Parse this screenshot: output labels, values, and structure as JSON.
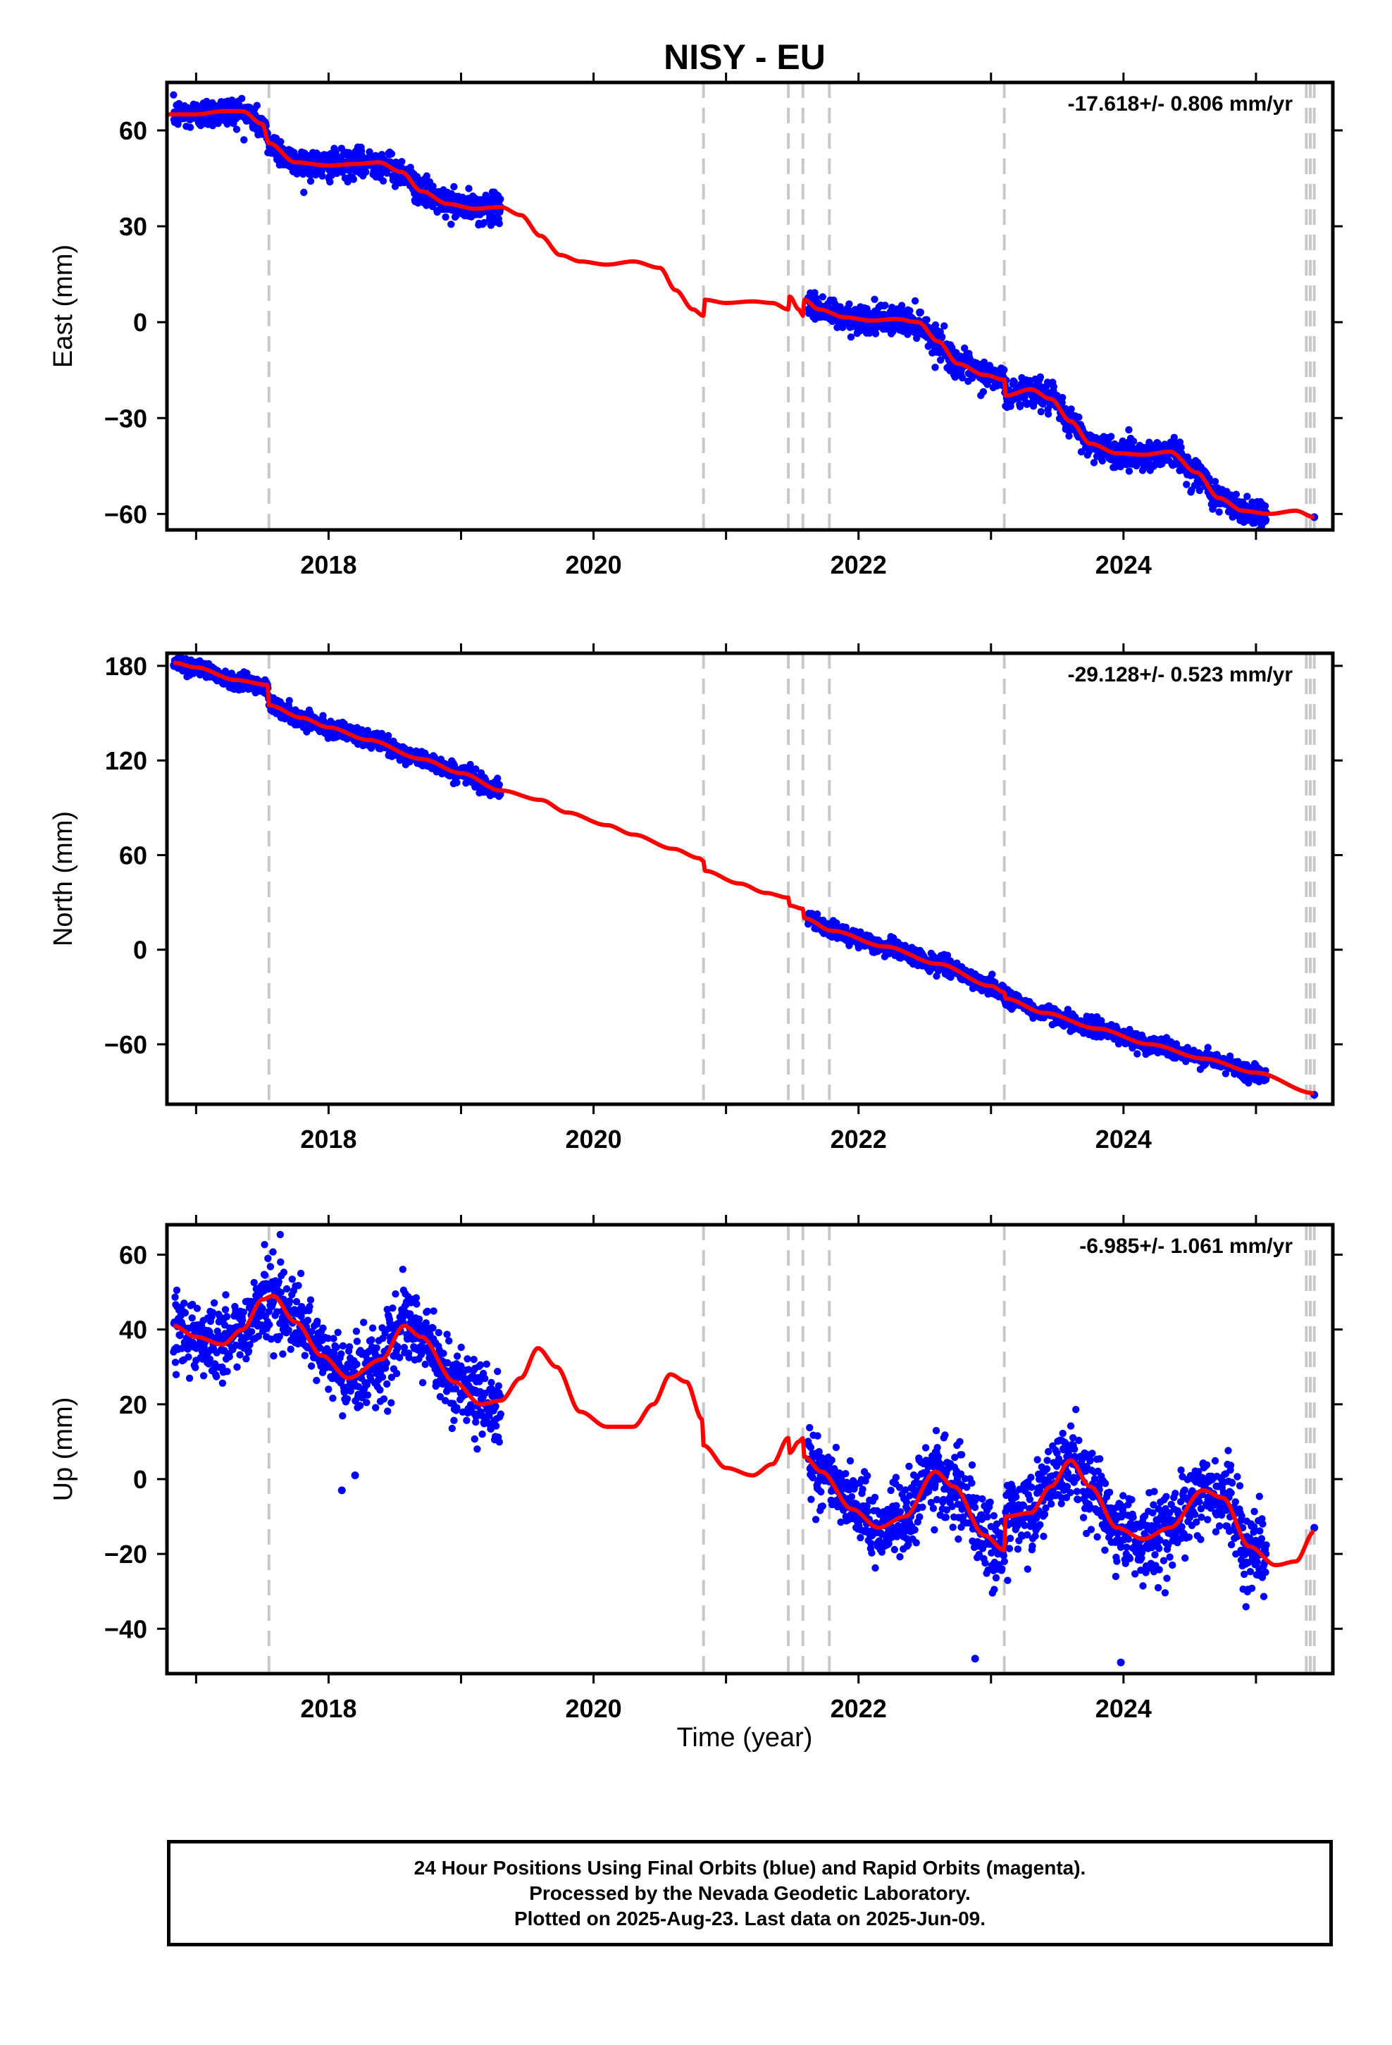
{
  "chart_data": {
    "type": "scatter",
    "title": "NISY - EU",
    "xlabel": "Time (year)",
    "x_range": [
      2016.78,
      2025.58
    ],
    "x_ticks": [
      2018,
      2020,
      2022,
      2024
    ],
    "x_tick_labels": [
      "2018",
      "2020",
      "2022",
      "2024"
    ],
    "equipment_change_lines": [
      2017.55,
      2020.83,
      2021.47,
      2021.58,
      2021.78,
      2023.1,
      2025.38,
      2025.41,
      2025.44
    ],
    "data_gap": [
      2019.3,
      2021.6
    ],
    "last_point_x": 2025.44,
    "panels": [
      {
        "name": "East",
        "ylabel": "East (mm)",
        "ylim": [
          -65,
          75
        ],
        "yticks": [
          60,
          30,
          0,
          -30,
          -60
        ],
        "ytick_labels": [
          "60",
          "30",
          "0",
          "−30",
          "−60"
        ],
        "rate_label": "-17.618+/- 0.806 mm/yr",
        "model_knots": [
          [
            2016.78,
            65
          ],
          [
            2017.0,
            65
          ],
          [
            2017.2,
            66
          ],
          [
            2017.35,
            66
          ],
          [
            2017.5,
            62
          ],
          [
            2017.55,
            56
          ],
          [
            2017.75,
            50
          ],
          [
            2018.0,
            49
          ],
          [
            2018.2,
            49.5
          ],
          [
            2018.38,
            50
          ],
          [
            2018.55,
            47
          ],
          [
            2018.7,
            41
          ],
          [
            2018.9,
            37
          ],
          [
            2019.1,
            35.5
          ],
          [
            2019.3,
            36
          ],
          [
            2019.45,
            33.5
          ],
          [
            2019.6,
            27
          ],
          [
            2019.75,
            21
          ],
          [
            2019.9,
            19
          ],
          [
            2020.1,
            18
          ],
          [
            2020.3,
            19
          ],
          [
            2020.5,
            17
          ],
          [
            2020.62,
            10
          ],
          [
            2020.75,
            4
          ],
          [
            2020.83,
            2
          ],
          [
            2020.84,
            7
          ],
          [
            2021.0,
            6
          ],
          [
            2021.2,
            6.5
          ],
          [
            2021.35,
            6
          ],
          [
            2021.47,
            4
          ],
          [
            2021.48,
            8
          ],
          [
            2021.55,
            4
          ],
          [
            2021.58,
            2
          ],
          [
            2021.59,
            7
          ],
          [
            2021.7,
            4
          ],
          [
            2021.9,
            1.5
          ],
          [
            2022.1,
            0.5
          ],
          [
            2022.28,
            1
          ],
          [
            2022.45,
            0
          ],
          [
            2022.6,
            -6
          ],
          [
            2022.75,
            -13
          ],
          [
            2022.95,
            -16.5
          ],
          [
            2023.1,
            -18
          ],
          [
            2023.11,
            -23
          ],
          [
            2023.3,
            -21
          ],
          [
            2023.45,
            -24
          ],
          [
            2023.6,
            -31
          ],
          [
            2023.75,
            -38
          ],
          [
            2023.95,
            -41
          ],
          [
            2024.15,
            -41.5
          ],
          [
            2024.35,
            -40.5
          ],
          [
            2024.55,
            -47
          ],
          [
            2024.72,
            -55
          ],
          [
            2024.9,
            -59
          ],
          [
            2025.1,
            -60
          ],
          [
            2025.3,
            -59
          ],
          [
            2025.44,
            -61
          ]
        ],
        "scatter_segments": [
          [
            2016.83,
            2019.3
          ],
          [
            2021.62,
            2025.08
          ]
        ],
        "noise": 2.2,
        "single_points": [
          [
            2025.44,
            -61
          ]
        ]
      },
      {
        "name": "North",
        "ylabel": "North (mm)",
        "ylim": [
          -98,
          188
        ],
        "yticks": [
          180,
          120,
          60,
          0,
          -60
        ],
        "ytick_labels": [
          "180",
          "120",
          "60",
          "0",
          "−60"
        ],
        "rate_label": "-29.128+/- 0.523 mm/yr",
        "model_knots": [
          [
            2016.83,
            182
          ],
          [
            2017.0,
            179
          ],
          [
            2017.3,
            171
          ],
          [
            2017.54,
            168
          ],
          [
            2017.55,
            155
          ],
          [
            2017.8,
            147
          ],
          [
            2018.0,
            141
          ],
          [
            2018.3,
            133
          ],
          [
            2018.7,
            121
          ],
          [
            2019.0,
            112
          ],
          [
            2019.3,
            101
          ],
          [
            2019.6,
            95
          ],
          [
            2019.8,
            87
          ],
          [
            2020.1,
            79
          ],
          [
            2020.3,
            73
          ],
          [
            2020.6,
            64
          ],
          [
            2020.8,
            58
          ],
          [
            2020.83,
            56
          ],
          [
            2020.84,
            50
          ],
          [
            2021.1,
            42
          ],
          [
            2021.3,
            36
          ],
          [
            2021.47,
            33
          ],
          [
            2021.48,
            28
          ],
          [
            2021.58,
            26
          ],
          [
            2021.59,
            20
          ],
          [
            2021.8,
            12
          ],
          [
            2022.2,
            2
          ],
          [
            2022.6,
            -9
          ],
          [
            2023.0,
            -23
          ],
          [
            2023.1,
            -27
          ],
          [
            2023.11,
            -31
          ],
          [
            2023.4,
            -40
          ],
          [
            2023.8,
            -50
          ],
          [
            2024.2,
            -60
          ],
          [
            2024.6,
            -69
          ],
          [
            2025.0,
            -78
          ],
          [
            2025.44,
            -91
          ]
        ],
        "scatter_segments": [
          [
            2016.83,
            2019.3
          ],
          [
            2021.62,
            2025.08
          ]
        ],
        "noise": 2.6,
        "single_points": [
          [
            2025.44,
            -92
          ]
        ]
      },
      {
        "name": "Up",
        "ylabel": "Up (mm)",
        "ylim": [
          -52,
          68
        ],
        "yticks": [
          60,
          40,
          20,
          0,
          -20,
          -40
        ],
        "ytick_labels": [
          "60",
          "40",
          "20",
          "0",
          "−20",
          "−40"
        ],
        "rate_label": "-6.985+/- 1.061 mm/yr",
        "model_knots": [
          [
            2016.83,
            41
          ],
          [
            2017.0,
            38
          ],
          [
            2017.2,
            36
          ],
          [
            2017.35,
            40
          ],
          [
            2017.5,
            48
          ],
          [
            2017.58,
            49
          ],
          [
            2017.75,
            42
          ],
          [
            2017.95,
            33
          ],
          [
            2018.15,
            27
          ],
          [
            2018.4,
            32
          ],
          [
            2018.57,
            41
          ],
          [
            2018.7,
            38
          ],
          [
            2018.95,
            26
          ],
          [
            2019.15,
            20
          ],
          [
            2019.3,
            21
          ],
          [
            2019.45,
            27
          ],
          [
            2019.58,
            35
          ],
          [
            2019.72,
            30
          ],
          [
            2019.9,
            18
          ],
          [
            2020.1,
            14
          ],
          [
            2020.3,
            14
          ],
          [
            2020.45,
            20
          ],
          [
            2020.58,
            28
          ],
          [
            2020.7,
            26
          ],
          [
            2020.82,
            16
          ],
          [
            2020.83,
            9
          ],
          [
            2021.0,
            3
          ],
          [
            2021.2,
            1
          ],
          [
            2021.35,
            4
          ],
          [
            2021.47,
            11
          ],
          [
            2021.48,
            7
          ],
          [
            2021.55,
            10
          ],
          [
            2021.58,
            11
          ],
          [
            2021.59,
            6
          ],
          [
            2021.72,
            2
          ],
          [
            2021.95,
            -8
          ],
          [
            2022.15,
            -13
          ],
          [
            2022.35,
            -10
          ],
          [
            2022.58,
            2
          ],
          [
            2022.72,
            -2
          ],
          [
            2022.95,
            -15
          ],
          [
            2023.1,
            -19
          ],
          [
            2023.11,
            -10
          ],
          [
            2023.3,
            -9
          ],
          [
            2023.45,
            -2
          ],
          [
            2023.6,
            5
          ],
          [
            2023.75,
            -2
          ],
          [
            2023.95,
            -13
          ],
          [
            2024.15,
            -16
          ],
          [
            2024.35,
            -13
          ],
          [
            2024.6,
            -3
          ],
          [
            2024.75,
            -5
          ],
          [
            2024.95,
            -18
          ],
          [
            2025.15,
            -23
          ],
          [
            2025.3,
            -22
          ],
          [
            2025.44,
            -14
          ]
        ],
        "scatter_segments": [
          [
            2016.83,
            2019.3
          ],
          [
            2021.62,
            2025.08
          ]
        ],
        "noise": 5.0,
        "single_points": [
          [
            2025.44,
            -13
          ],
          [
            2022.88,
            -48
          ],
          [
            2023.98,
            -49
          ],
          [
            2018.1,
            -3
          ],
          [
            2018.2,
            1
          ]
        ]
      }
    ]
  },
  "footer": {
    "line1": "24 Hour Positions Using Final Orbits (blue) and Rapid Orbits (magenta).",
    "line2": "Processed by the Nevada Geodetic Laboratory.",
    "line3": "Plotted on 2025-Aug-23. Last data on 2025-Jun-09."
  },
  "colors": {
    "points": "#0000ff",
    "model": "#ff0000",
    "breaks": "#c8c8c8",
    "axes": "#000000"
  }
}
